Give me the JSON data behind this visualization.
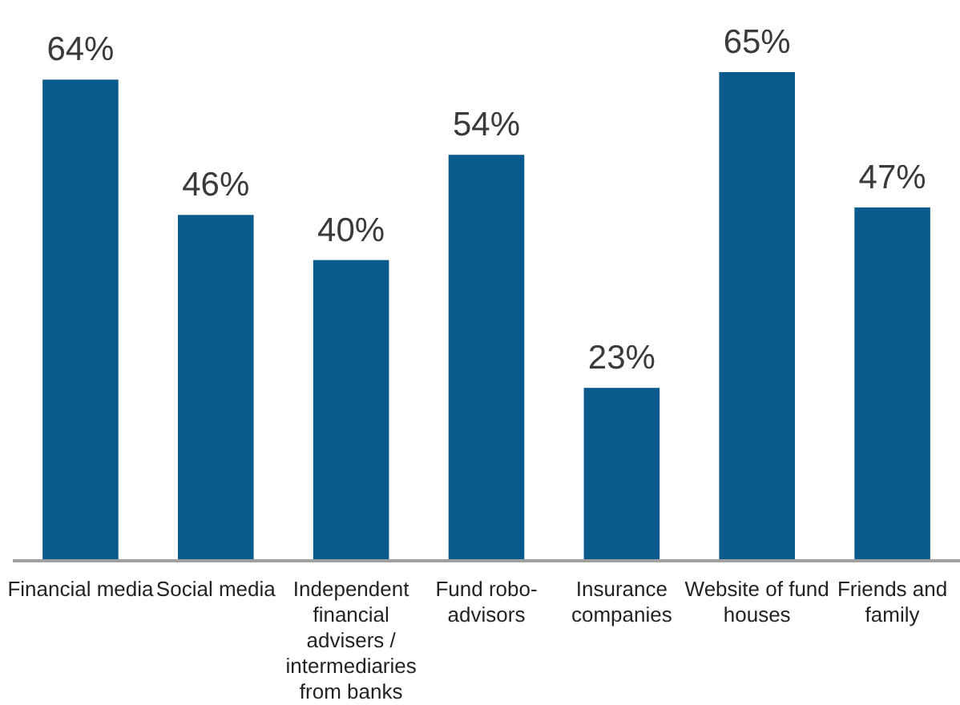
{
  "chart_data": {
    "type": "bar",
    "categories": [
      "Financial media",
      "Social media",
      "Independent financial advisers / intermediaries from banks",
      "Fund robo-advisors",
      "Insurance companies",
      "Website of fund houses",
      "Friends and family"
    ],
    "values": [
      64,
      46,
      40,
      54,
      23,
      65,
      47
    ],
    "value_labels": [
      "64%",
      "46%",
      "40%",
      "54%",
      "23%",
      "65%",
      "47%"
    ],
    "color": "#0b5a8e"
  }
}
